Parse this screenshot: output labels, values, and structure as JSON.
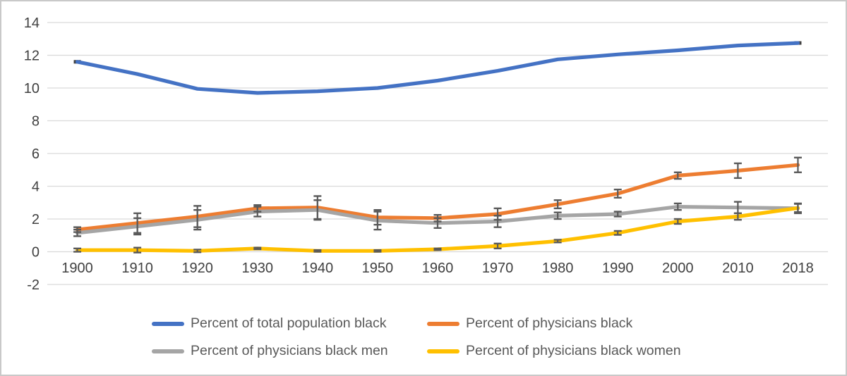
{
  "frame": {
    "background": "#ffffff",
    "border_color": "#c9c9c9"
  },
  "chart_data": {
    "type": "line",
    "title": "",
    "xlabel": "",
    "ylabel": "",
    "x_tick_labels": [
      "1900",
      "1910",
      "1920",
      "1930",
      "1940",
      "1950",
      "1960",
      "1970",
      "1980",
      "1990",
      "2000",
      "2010",
      "2018"
    ],
    "y_ticks": [
      14,
      12,
      10,
      8,
      6,
      4,
      2,
      0,
      -2
    ],
    "ylim": [
      -2,
      14
    ],
    "grid": "horizontal-only",
    "gridline_color": "#d9d9d9",
    "axis_label_color": "#404040",
    "error_bar_color": "#595959",
    "legend_position": "bottom",
    "series": [
      {
        "name": "Percent of total population black",
        "color": "#4472C4",
        "values": [
          11.6,
          10.85,
          9.95,
          9.7,
          9.8,
          10.0,
          10.45,
          11.05,
          11.75,
          12.05,
          12.3,
          12.6,
          12.75
        ],
        "errors": null,
        "end_markers": true
      },
      {
        "name": "Percent of physicians black",
        "color": "#ED7D31",
        "values": [
          1.35,
          1.75,
          2.15,
          2.65,
          2.7,
          2.1,
          2.05,
          2.3,
          2.9,
          3.55,
          4.65,
          4.95,
          5.3
        ],
        "errors": [
          0.15,
          0.6,
          0.65,
          0.2,
          0.7,
          0.45,
          0.2,
          0.35,
          0.25,
          0.25,
          0.2,
          0.45,
          0.45
        ],
        "end_markers": false
      },
      {
        "name": "Percent of physicians black men",
        "color": "#A5A5A5",
        "values": [
          1.15,
          1.55,
          1.95,
          2.45,
          2.55,
          1.9,
          1.75,
          1.85,
          2.2,
          2.3,
          2.75,
          2.7,
          2.65
        ],
        "errors": [
          0.2,
          0.5,
          0.6,
          0.3,
          0.6,
          0.55,
          0.3,
          0.35,
          0.2,
          0.15,
          0.2,
          0.35,
          0.3
        ],
        "end_markers": false
      },
      {
        "name": "Percent of physicians black women",
        "color": "#FFC000",
        "values": [
          0.1,
          0.1,
          0.05,
          0.2,
          0.05,
          0.05,
          0.15,
          0.35,
          0.65,
          1.15,
          1.85,
          2.15,
          2.67
        ],
        "errors": [
          0.1,
          0.15,
          0.08,
          0.05,
          0.05,
          0.05,
          0.05,
          0.15,
          0.08,
          0.12,
          0.15,
          0.2,
          0.25
        ],
        "end_markers": false
      }
    ]
  }
}
